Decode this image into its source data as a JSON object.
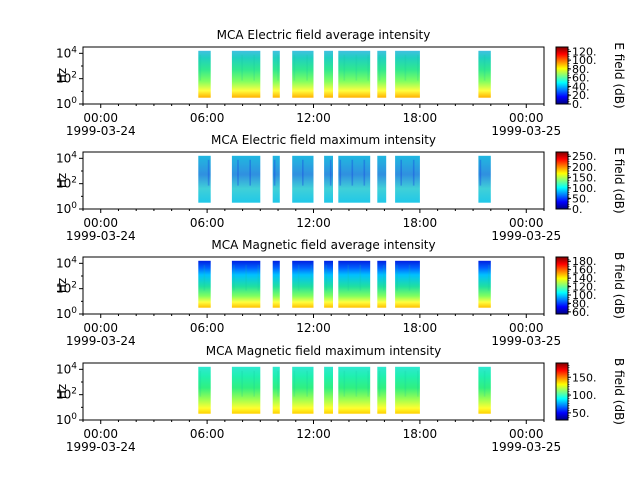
{
  "chart_data": [
    {
      "type": "heatmap",
      "title": "MCA  Electric field average intensity",
      "ylabel": "Hz",
      "colorbar_label": "E field (dB)",
      "colorbar_ticks": [
        "0.",
        "20.",
        "40.",
        "60.",
        "80.",
        "100.",
        "120."
      ],
      "colorbar_range": [
        0,
        130
      ],
      "kind": "E-avg"
    },
    {
      "type": "heatmap",
      "title": "MCA  Electric field maximum intensity",
      "ylabel": "Hz",
      "colorbar_label": "E field (dB)",
      "colorbar_ticks": [
        "0.",
        "50.",
        "100.",
        "150.",
        "200.",
        "250."
      ],
      "colorbar_range": [
        0,
        270
      ],
      "kind": "E-max"
    },
    {
      "type": "heatmap",
      "title": "MCA  Magnetic field average intensity",
      "ylabel": "Hz",
      "colorbar_label": "B field (dB)",
      "colorbar_ticks": [
        "60.",
        "80.",
        "100.",
        "120.",
        "140.",
        "160.",
        "180."
      ],
      "colorbar_range": [
        55,
        190
      ],
      "kind": "B-avg"
    },
    {
      "type": "heatmap",
      "title": "MCA  Magnetic field maximum intensity",
      "ylabel": "Hz",
      "colorbar_label": "B field (dB)",
      "colorbar_ticks": [
        "50.",
        "100.",
        "150."
      ],
      "colorbar_range": [
        30,
        190
      ],
      "kind": "B-max"
    }
  ],
  "x_axis": {
    "range_hours": [
      -1,
      25
    ],
    "ticks": [
      {
        "hour": 0,
        "label": "00:00",
        "date": "1999-03-24"
      },
      {
        "hour": 6,
        "label": "06:00",
        "date": ""
      },
      {
        "hour": 12,
        "label": "12:00",
        "date": ""
      },
      {
        "hour": 18,
        "label": "18:00",
        "date": ""
      },
      {
        "hour": 24,
        "label": "00:00",
        "date": "1999-03-25"
      }
    ]
  },
  "y_axis": {
    "range_log10": [
      0,
      4.5
    ],
    "ticks": [
      {
        "exp": 0,
        "base": "10",
        "power": "0"
      },
      {
        "exp": 2,
        "base": "10",
        "power": "2"
      },
      {
        "exp": 4,
        "base": "10",
        "power": "4"
      }
    ]
  },
  "data_intervals_hours": [
    [
      5.5,
      6.2
    ],
    [
      7.4,
      9.0
    ],
    [
      9.7,
      10.1
    ],
    [
      10.8,
      12.0
    ],
    [
      12.6,
      13.1
    ],
    [
      13.4,
      15.2
    ],
    [
      15.6,
      16.1
    ],
    [
      16.6,
      18.0
    ],
    [
      21.3,
      22.0
    ]
  ],
  "frequency_range_log10": [
    0.5,
    4.2
  ]
}
